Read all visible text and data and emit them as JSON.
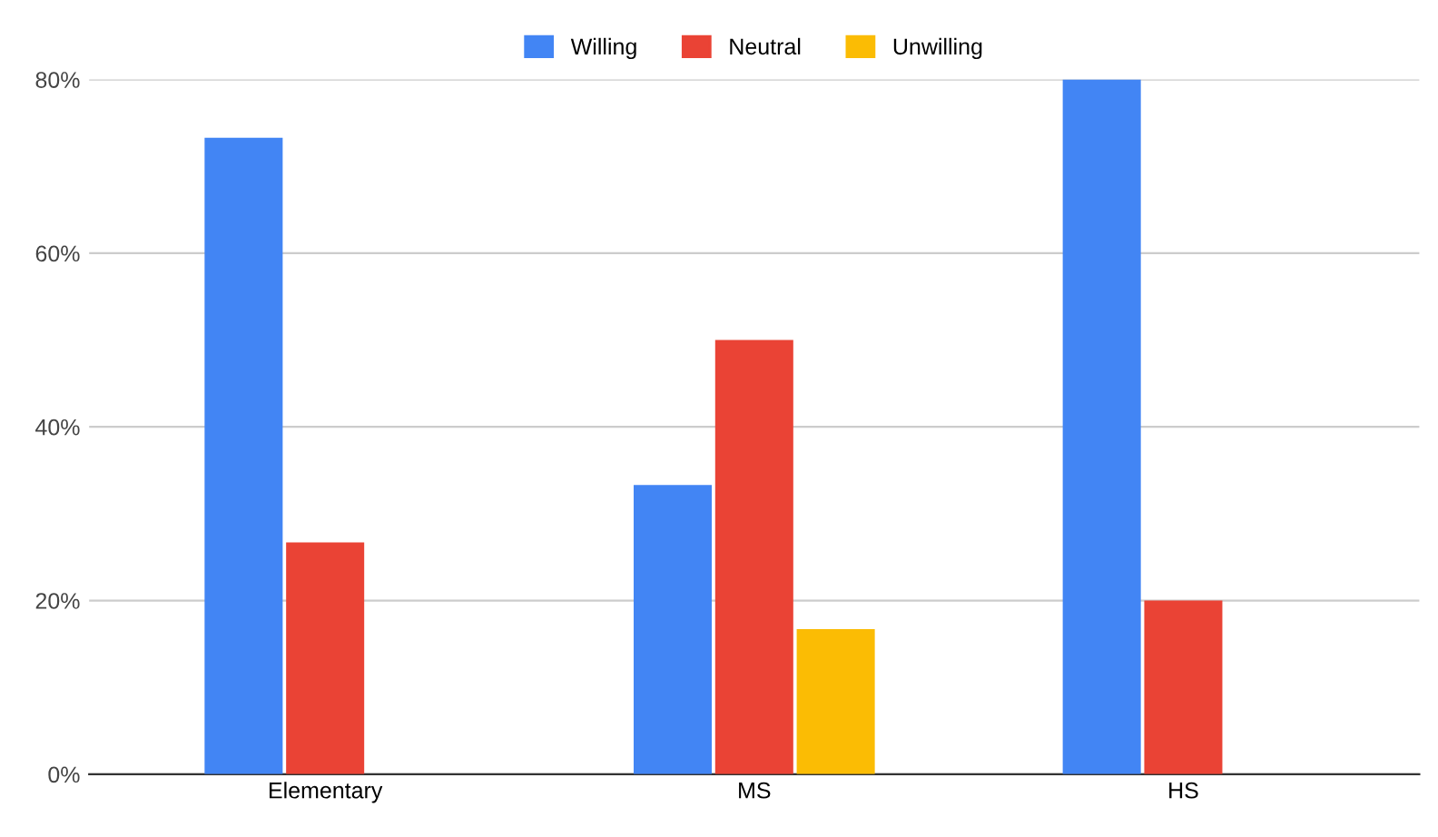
{
  "chart_data": {
    "type": "bar",
    "categories": [
      "Elementary",
      "MS",
      "HS"
    ],
    "series": [
      {
        "name": "Willing",
        "color": "#4285f4",
        "values": [
          73.3,
          33.3,
          80
        ]
      },
      {
        "name": "Neutral",
        "color": "#ea4335",
        "values": [
          26.7,
          50,
          20
        ]
      },
      {
        "name": "Unwilling",
        "color": "#fbbc04",
        "values": [
          0,
          16.7,
          0
        ]
      }
    ],
    "ylim": [
      0,
      80
    ],
    "yticks": [
      {
        "value": 0,
        "label": "0%"
      },
      {
        "value": 20,
        "label": "20%"
      },
      {
        "value": 40,
        "label": "40%"
      },
      {
        "value": 60,
        "label": "60%"
      },
      {
        "value": 80,
        "label": "80%"
      }
    ],
    "grid": "y",
    "legend": "top"
  }
}
